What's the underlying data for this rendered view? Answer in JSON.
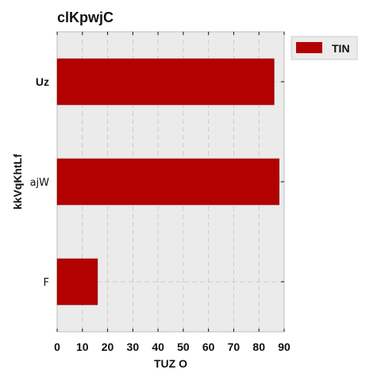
{
  "chart_data": {
    "type": "bar",
    "orientation": "horizontal",
    "title": "clKpwjC",
    "xlabel": "TUZ O",
    "ylabel": "kkVqKhtLf",
    "categories": [
      "F",
      "ajW",
      "Uz"
    ],
    "series": [
      {
        "name": "TIN",
        "values": [
          16,
          88,
          86
        ],
        "color": "#b30000"
      }
    ],
    "xlim": [
      0,
      90
    ],
    "xticks": [
      "0",
      "10",
      "20",
      "30",
      "40",
      "50",
      "60",
      "70",
      "80",
      "90"
    ],
    "grid": true,
    "legend_position": "outside-top-right",
    "background": "#ebebeb"
  }
}
